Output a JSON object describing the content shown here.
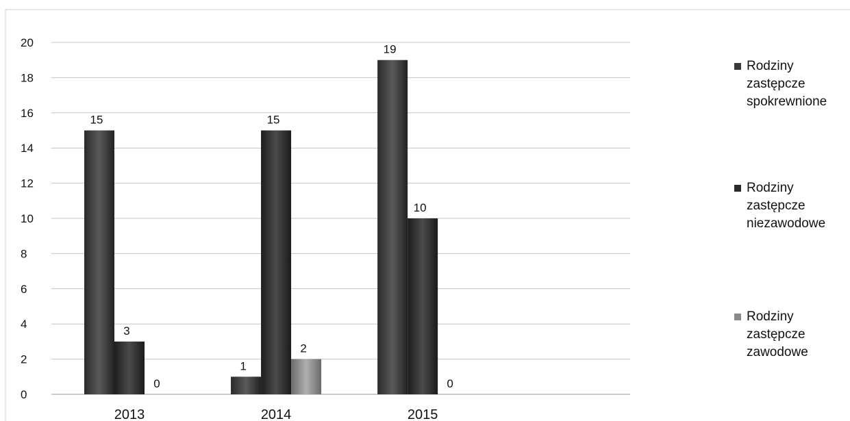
{
  "chart_data": {
    "type": "bar",
    "categories": [
      "2013",
      "2014",
      "2015"
    ],
    "series": [
      {
        "name": "Rodziny zastępcze spokrewnione",
        "values": [
          15,
          1,
          19
        ],
        "color": "#3a3a3a"
      },
      {
        "name": "Rodziny zastępcze niezawodowe",
        "values": [
          3,
          15,
          10
        ],
        "color": "#2a2a2a"
      },
      {
        "name": "Rodziny zastępcze zawodowe",
        "values": [
          0,
          2,
          0
        ],
        "color": "#8a8a8a"
      }
    ],
    "ylim": [
      0,
      20
    ],
    "yticks": [
      0,
      2,
      4,
      6,
      8,
      10,
      12,
      14,
      16,
      18,
      20
    ],
    "grid": true,
    "legend_position": "right"
  },
  "legend": {
    "items": [
      {
        "lines": [
          "Rodziny",
          "zastępcze",
          "spokrewnione"
        ]
      },
      {
        "lines": [
          "Rodziny",
          "zastępcze",
          "niezawodowe"
        ]
      },
      {
        "lines": [
          "Rodziny",
          "zastępcze",
          "zawodowe"
        ]
      }
    ]
  }
}
